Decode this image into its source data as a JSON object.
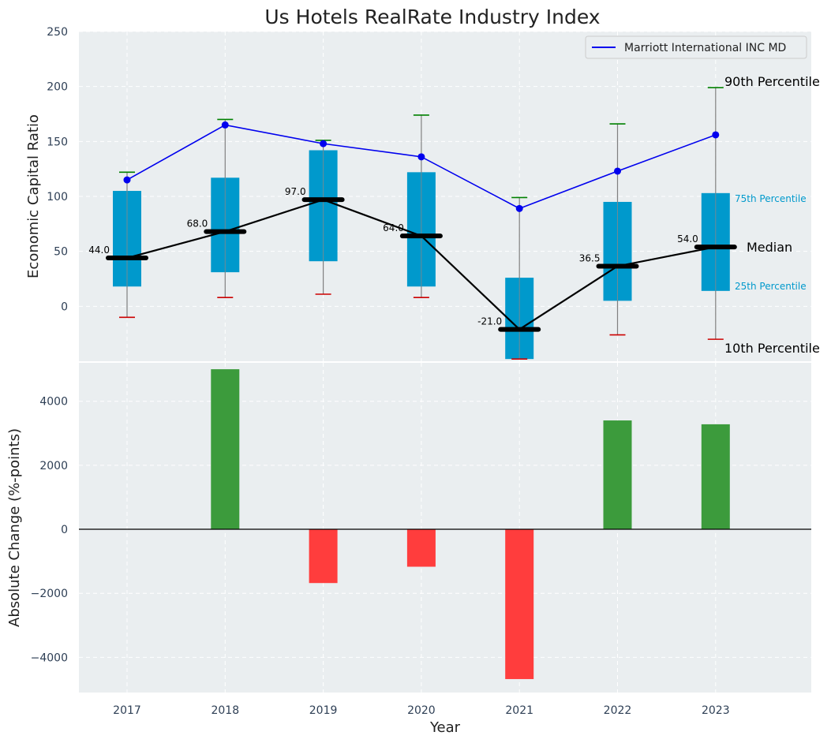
{
  "chart_data": [
    {
      "type": "box",
      "title": "Us Hotels RealRate Industry Index",
      "ylabel": "Economic Capital Ratio",
      "ylim": [
        -50,
        250
      ],
      "yticks": [
        0,
        50,
        100,
        150,
        200,
        250
      ],
      "grid": true,
      "categories": [
        "2017",
        "2018",
        "2019",
        "2020",
        "2021",
        "2022",
        "2023"
      ],
      "p10": [
        -10,
        8,
        11,
        8,
        -48,
        -26,
        -30
      ],
      "p25": [
        18,
        31,
        41,
        18,
        -48,
        5,
        14
      ],
      "median": [
        44.0,
        68.0,
        97.0,
        64.0,
        -21.0,
        36.5,
        54.0
      ],
      "median_labels": [
        "44.0",
        "68.0",
        "97.0",
        "64.0",
        "-21.0",
        "36.5",
        "54.0"
      ],
      "p75": [
        105,
        117,
        142,
        122,
        26,
        95,
        103
      ],
      "p90": [
        122,
        170,
        151,
        174,
        99,
        166,
        199
      ],
      "series": [
        {
          "name": "Marriott International INC MD",
          "values": [
            115,
            165,
            148,
            136,
            89,
            123,
            156
          ],
          "color": "#0000ee"
        }
      ],
      "colors": {
        "box": "#0099cc",
        "median_line": "#000000",
        "p10_cap": "#cc0000",
        "p90_cap": "#008000"
      },
      "legend": "top-right",
      "annotations": {
        "p90": "90th Percentile",
        "p75": "75th Percentile",
        "median": "Median",
        "p25": "25th Percentile",
        "p10": "10th Percentile"
      }
    },
    {
      "type": "bar",
      "ylabel": "Absolute Change (%-points)",
      "xlabel": "Year",
      "ylim": [
        -5100,
        5200
      ],
      "yticks": [
        -4000,
        -2000,
        0,
        2000,
        4000
      ],
      "ytick_labels": [
        "−4000",
        "−2000",
        "0",
        "2000",
        "4000"
      ],
      "grid": true,
      "categories": [
        "2017",
        "2018",
        "2019",
        "2020",
        "2021",
        "2022",
        "2023"
      ],
      "values": [
        0,
        5000,
        -1680,
        -1170,
        -4680,
        3400,
        3280
      ],
      "colors": {
        "positive": "#3c9b3c",
        "negative": "#ff3d3d"
      }
    }
  ]
}
